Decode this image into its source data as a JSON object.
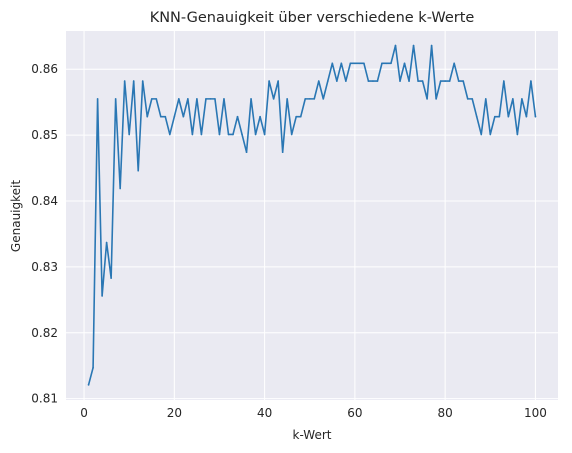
{
  "chart_data": {
    "type": "line",
    "title": "KNN-Genauigkeit über verschiedene k-Werte",
    "xlabel": "k-Wert",
    "ylabel": "Genauigkeit",
    "xlim": [
      -4,
      105
    ],
    "ylim": [
      0.8098,
      0.8658
    ],
    "xticks": [
      0,
      20,
      40,
      60,
      80,
      100
    ],
    "yticks": [
      0.81,
      0.82,
      0.83,
      0.84,
      0.85,
      0.86
    ],
    "ytick_labels": [
      "0.81",
      "0.82",
      "0.83",
      "0.84",
      "0.85",
      "0.86"
    ],
    "grid": true,
    "line_color": "#2a77b4",
    "background_color": "#eaeaf2",
    "series": [
      {
        "x": [
          1,
          2,
          3,
          4,
          5,
          6,
          7,
          8,
          9,
          10,
          11,
          12,
          13,
          14,
          15,
          16,
          17,
          18,
          19,
          20,
          21,
          22,
          23,
          24,
          25,
          26,
          27,
          28,
          29,
          30,
          31,
          32,
          33,
          34,
          35,
          36,
          37,
          38,
          39,
          40,
          41,
          42,
          43,
          44,
          45,
          46,
          47,
          48,
          49,
          50,
          51,
          52,
          53,
          54,
          55,
          56,
          57,
          58,
          59,
          60,
          61,
          62,
          63,
          64,
          65,
          66,
          67,
          68,
          69,
          70,
          71,
          72,
          73,
          74,
          75,
          76,
          77,
          78,
          79,
          80,
          81,
          82,
          83,
          84,
          85,
          86,
          87,
          88,
          89,
          90,
          91,
          92,
          93,
          94,
          95,
          96,
          97,
          98,
          99,
          100
        ],
        "values": [
          0.8121,
          0.8147,
          0.8555,
          0.8256,
          0.8337,
          0.8283,
          0.8555,
          0.8419,
          0.8582,
          0.8501,
          0.8582,
          0.8446,
          0.8582,
          0.8528,
          0.8555,
          0.8555,
          0.8528,
          0.8528,
          0.8501,
          0.8528,
          0.8555,
          0.8528,
          0.8555,
          0.8501,
          0.8555,
          0.8501,
          0.8555,
          0.8555,
          0.8555,
          0.8501,
          0.8555,
          0.8501,
          0.8501,
          0.8528,
          0.8501,
          0.8474,
          0.8555,
          0.8501,
          0.8528,
          0.8501,
          0.8582,
          0.8555,
          0.8582,
          0.8474,
          0.8555,
          0.8501,
          0.8528,
          0.8528,
          0.8555,
          0.8555,
          0.8555,
          0.8582,
          0.8555,
          0.8582,
          0.8609,
          0.8582,
          0.8609,
          0.8582,
          0.8609,
          0.8609,
          0.8609,
          0.8609,
          0.8582,
          0.8582,
          0.8582,
          0.8609,
          0.8609,
          0.8609,
          0.8636,
          0.8582,
          0.8609,
          0.8582,
          0.8636,
          0.8582,
          0.8582,
          0.8555,
          0.8636,
          0.8555,
          0.8582,
          0.8582,
          0.8582,
          0.8609,
          0.8582,
          0.8582,
          0.8555,
          0.8555,
          0.8528,
          0.8501,
          0.8555,
          0.8501,
          0.8528,
          0.8528,
          0.8582,
          0.8528,
          0.8555,
          0.8501,
          0.8555,
          0.8528,
          0.8582,
          0.8528
        ]
      }
    ]
  }
}
